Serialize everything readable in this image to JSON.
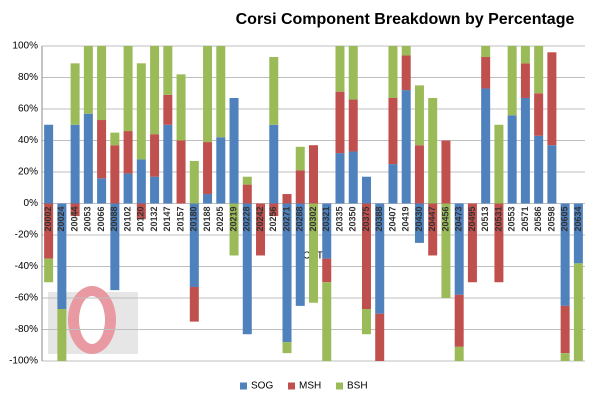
{
  "chart_data": {
    "type": "bar",
    "stacked": true,
    "title": "Corsi Component Breakdown by Percentage",
    "annotation": "OTT",
    "categories": [
      "20002",
      "20024",
      "20044",
      "20053",
      "20066",
      "20088",
      "20102",
      "20120",
      "20132",
      "20147",
      "20157",
      "20180",
      "20188",
      "20205",
      "20219",
      "20228",
      "20242",
      "20256",
      "20271",
      "20288",
      "20302",
      "20321",
      "20335",
      "20350",
      "20375",
      "20388",
      "20407",
      "20419",
      "20430",
      "20447",
      "20456",
      "20473",
      "20495",
      "20513",
      "20531",
      "20553",
      "20571",
      "20586",
      "20598",
      "20605",
      "20634"
    ],
    "series": [
      {
        "name": "SOG",
        "color": "#4f81bd",
        "values": [
          50,
          -67,
          50,
          57,
          16,
          -55,
          19,
          28,
          17,
          50,
          0,
          -53,
          6,
          42,
          67,
          -83,
          0,
          50,
          -88,
          -65,
          0,
          -35,
          32,
          33,
          17,
          -70,
          25,
          72,
          -25,
          0,
          0,
          -58,
          0,
          73,
          0,
          56,
          67,
          43,
          37,
          -65,
          -38
        ]
      },
      {
        "name": "MSH",
        "color": "#c0504d",
        "values": [
          -35,
          0,
          -8,
          0,
          37,
          37,
          27,
          -10,
          27,
          19,
          40,
          -22,
          33,
          0,
          0,
          12,
          -33,
          -8,
          6,
          21,
          37,
          -15,
          39,
          33,
          -67,
          -30,
          42,
          22,
          37,
          -33,
          40,
          -33,
          -50,
          20,
          -50,
          0,
          22,
          27,
          59,
          -30,
          0
        ]
      },
      {
        "name": "BSH",
        "color": "#9bbb59",
        "values": [
          -15,
          -33,
          39,
          43,
          47,
          8,
          54,
          61,
          56,
          31,
          42,
          27,
          61,
          58,
          -33,
          5,
          0,
          43,
          -7,
          15,
          -63,
          -50,
          29,
          34,
          -16,
          0,
          33,
          6,
          38,
          67,
          -60,
          -9,
          0,
          7,
          50,
          44,
          11,
          30,
          0,
          -5,
          -62
        ]
      }
    ],
    "ylim": [
      -100,
      100
    ],
    "yticks": [
      {
        "value": -100,
        "label": "-100%"
      },
      {
        "value": -80,
        "label": "-80%"
      },
      {
        "value": -60,
        "label": "-60%"
      },
      {
        "value": -40,
        "label": "-40%"
      },
      {
        "value": -20,
        "label": "-20%"
      },
      {
        "value": 0,
        "label": "0%"
      },
      {
        "value": 20,
        "label": "20%"
      },
      {
        "value": 40,
        "label": "40%"
      },
      {
        "value": 60,
        "label": "60%"
      },
      {
        "value": 80,
        "label": "80%"
      },
      {
        "value": 100,
        "label": "100%"
      }
    ],
    "grid": true,
    "legend": "bottom"
  }
}
